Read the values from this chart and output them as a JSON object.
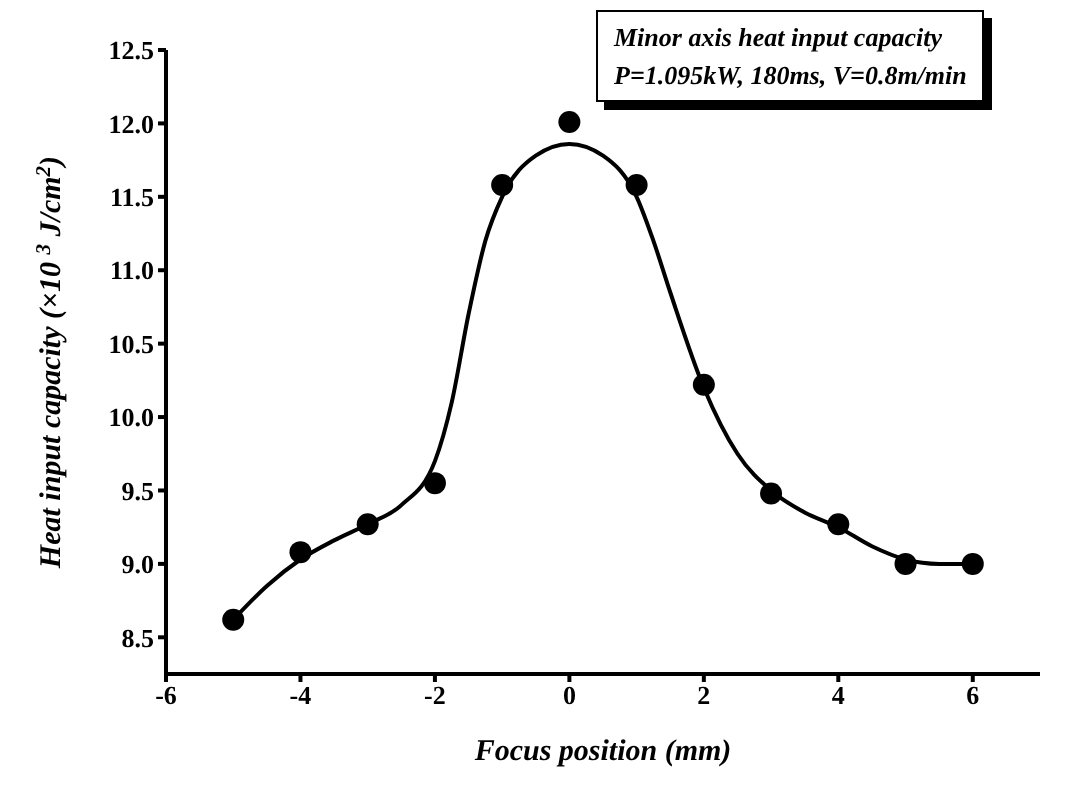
{
  "chart_data": {
    "type": "scatter",
    "xlabel": "Focus position (mm)",
    "ylabel": "Heat input capacity (×10 $^{3}$ J/cm$^{2}$)",
    "annotations": [
      "Minor axis heat input capacity",
      "P=1.095kW, 180ms, V=0.8m/min"
    ],
    "x": [
      -5,
      -4,
      -3,
      -2,
      -1,
      0,
      1,
      2,
      3,
      4,
      5,
      6
    ],
    "series": [
      {
        "type": "scatter",
        "color": "#000000",
        "marker": "circle",
        "values": [
          8.62,
          9.08,
          9.27,
          9.55,
          11.58,
          12.01,
          11.58,
          10.22,
          9.48,
          9.27,
          9.0,
          9.0
        ]
      },
      {
        "type": "line",
        "color": "#000000",
        "marker": "none",
        "x": [
          -5,
          -4.5,
          -4,
          -3.5,
          -3,
          -2.5,
          -2,
          -1.75,
          -1.5,
          -1.25,
          -1,
          -0.5,
          0,
          0.5,
          1,
          1.25,
          1.5,
          2,
          2.5,
          3,
          3.5,
          4,
          4.5,
          5,
          5.5,
          6
        ],
        "values": [
          8.62,
          8.85,
          9.03,
          9.16,
          9.27,
          9.4,
          9.7,
          10.1,
          10.7,
          11.2,
          11.5,
          11.78,
          11.86,
          11.78,
          11.5,
          11.2,
          10.85,
          10.2,
          9.75,
          9.5,
          9.35,
          9.25,
          9.12,
          9.03,
          9.0,
          9.0
        ]
      }
    ],
    "xlim": [
      -6,
      7
    ],
    "xticks": [
      {
        "value": -6,
        "label": "-6"
      },
      {
        "value": -4,
        "label": "-4"
      },
      {
        "value": -2,
        "label": "-2"
      },
      0,
      2,
      4,
      6
    ],
    "ylim": [
      8.25,
      12.5
    ],
    "yticks": [
      {
        "value": 8.5,
        "label": "8.5"
      },
      {
        "value": 9,
        "label": "9.0"
      },
      {
        "value": 9.5,
        "label": "9.5"
      },
      {
        "value": 10,
        "label": "10.0"
      },
      {
        "value": 10.5,
        "label": "10.5"
      },
      {
        "value": 11,
        "label": "11.0"
      },
      {
        "value": 11.5,
        "label": "11.5"
      },
      {
        "value": 12,
        "label": "12.0"
      },
      {
        "value": 12.5,
        "label": "12.5"
      }
    ],
    "grid": false,
    "legend": false
  }
}
